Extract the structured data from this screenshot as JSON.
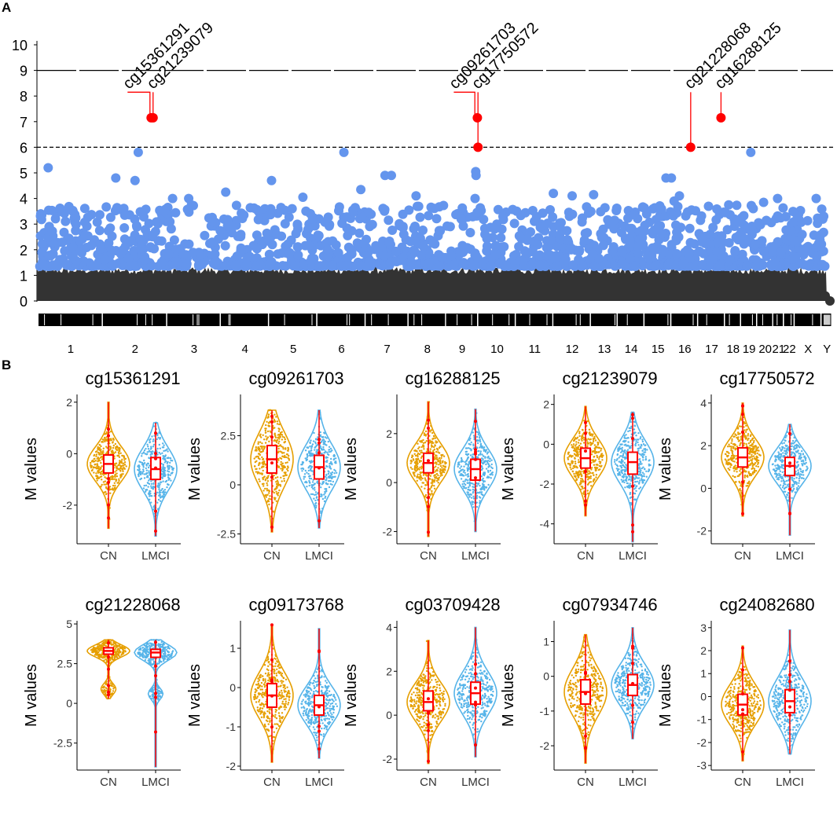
{
  "panels": {
    "a_label": "A",
    "b_label": "B"
  },
  "colors": {
    "low_points": "#333333",
    "mid_points": "#6495ED",
    "highlight": "#ff0000",
    "cn": "#E69F00",
    "lmci": "#56B4E9",
    "box_edge": "#ff0000"
  },
  "chart_data": [
    {
      "type": "scatter",
      "name": "manhattan",
      "ylim": [
        0,
        10
      ],
      "yticks": [
        0,
        1,
        2,
        3,
        4,
        5,
        6,
        7,
        8,
        9,
        10
      ],
      "thresholds": [
        {
          "value": 9,
          "style": "solid"
        },
        {
          "value": 6,
          "style": "dashed"
        }
      ],
      "chromosomes": [
        "1",
        "2",
        "3",
        "4",
        "5",
        "6",
        "7",
        "8",
        "9",
        "10",
        "11",
        "12",
        "13",
        "14",
        "15",
        "16",
        "17",
        "18",
        "19",
        "20",
        "21",
        "22",
        "X",
        "Y"
      ],
      "chromosome_weights": [
        12,
        12,
        10,
        9,
        9,
        9,
        8,
        7,
        6,
        7,
        7,
        7,
        5,
        5,
        5,
        5,
        5,
        3,
        3,
        3,
        2,
        2,
        5,
        2
      ],
      "highlighted": [
        {
          "label": "cg15361291",
          "chr": "2",
          "pos": 0.75,
          "y": 7.15,
          "leader_to": "cg21239079"
        },
        {
          "label": "cg21239079",
          "chr": "2",
          "pos": 0.78,
          "y": 7.15
        },
        {
          "label": "cg09261703",
          "chr": "9",
          "pos": 0.97,
          "y": 7.15,
          "leader_to": "cg17750572"
        },
        {
          "label": "cg17750572",
          "chr": "9",
          "pos": 0.99,
          "y": 6.0
        },
        {
          "label": "cg21228068",
          "chr": "16",
          "pos": 0.72,
          "y": 6.0
        },
        {
          "label": "cg16288125",
          "chr": "17",
          "pos": 0.85,
          "y": 7.15
        }
      ],
      "notable_points": [
        {
          "chr": "1",
          "pos": 0.15,
          "y": 5.2
        },
        {
          "chr": "2",
          "pos": 0.55,
          "y": 5.8
        },
        {
          "chr": "2",
          "pos": 0.2,
          "y": 4.8
        },
        {
          "chr": "2",
          "pos": 0.5,
          "y": 4.7
        },
        {
          "chr": "3",
          "pos": 0.1,
          "y": 4.0
        },
        {
          "chr": "3",
          "pos": 0.4,
          "y": 4.0
        },
        {
          "chr": "4",
          "pos": 0.1,
          "y": 4.25
        },
        {
          "chr": "5",
          "pos": 0.05,
          "y": 4.7
        },
        {
          "chr": "5",
          "pos": 0.7,
          "y": 4.05
        },
        {
          "chr": "6",
          "pos": 0.55,
          "y": 5.8
        },
        {
          "chr": "6",
          "pos": 0.9,
          "y": 4.35
        },
        {
          "chr": "7",
          "pos": 0.45,
          "y": 4.9
        },
        {
          "chr": "7",
          "pos": 0.6,
          "y": 4.9
        },
        {
          "chr": "8",
          "pos": 0.2,
          "y": 4.1
        },
        {
          "chr": "9",
          "pos": 0.92,
          "y": 5.05
        },
        {
          "chr": "9",
          "pos": 0.93,
          "y": 4.9
        },
        {
          "chr": "9",
          "pos": 0.9,
          "y": 4.0
        },
        {
          "chr": "12",
          "pos": 0.0,
          "y": 4.2
        },
        {
          "chr": "12",
          "pos": 0.5,
          "y": 4.1
        },
        {
          "chr": "13",
          "pos": 0.1,
          "y": 4.15
        },
        {
          "chr": "15",
          "pos": 0.8,
          "y": 4.8
        },
        {
          "chr": "16",
          "pos": 0.0,
          "y": 4.8
        },
        {
          "chr": "16",
          "pos": 0.3,
          "y": 4.1
        },
        {
          "chr": "16",
          "pos": 0.1,
          "y": 3.9
        },
        {
          "chr": "19",
          "pos": 0.6,
          "y": 5.8
        },
        {
          "chr": "20",
          "pos": 0.4,
          "y": 3.85
        },
        {
          "chr": "21",
          "pos": 0.4,
          "y": 4.0
        },
        {
          "chr": "X",
          "pos": 0.1,
          "y": 3.3
        },
        {
          "chr": "X",
          "pos": 0.8,
          "y": 4.0
        },
        {
          "chr": "Y",
          "pos": 0.2,
          "y": 3.3
        }
      ]
    },
    {
      "type": "violin",
      "name": "cg15361291",
      "title": "cg15361291",
      "ylabel": "M values",
      "categories": [
        "CN",
        "LMCI"
      ],
      "yticks": [
        -2,
        0,
        2
      ],
      "ylim": [
        -3.5,
        2.3
      ],
      "groups": [
        {
          "median": -0.4,
          "q1": -0.75,
          "q3": -0.05,
          "min": -2.9,
          "max": 2.0
        },
        {
          "median": -0.6,
          "q1": -1.0,
          "q3": -0.15,
          "min": -3.2,
          "max": 1.2
        }
      ]
    },
    {
      "type": "violin",
      "name": "cg09261703",
      "title": "cg09261703",
      "ylabel": "M values",
      "categories": [
        "CN",
        "LMCI"
      ],
      "yticks": [
        -2.5,
        0.0,
        2.5
      ],
      "ylim": [
        -3.0,
        4.6
      ],
      "groups": [
        {
          "median": 1.3,
          "q1": 0.6,
          "q3": 2.0,
          "min": -2.4,
          "max": 3.8
        },
        {
          "median": 0.9,
          "q1": 0.3,
          "q3": 1.5,
          "min": -2.2,
          "max": 3.8
        }
      ]
    },
    {
      "type": "violin",
      "name": "cg16288125",
      "title": "cg16288125",
      "ylabel": "M values",
      "categories": [
        "CN",
        "LMCI"
      ],
      "yticks": [
        -2,
        0,
        2
      ],
      "ylim": [
        -2.5,
        3.6
      ],
      "groups": [
        {
          "median": 0.8,
          "q1": 0.4,
          "q3": 1.2,
          "min": -2.2,
          "max": 3.3
        },
        {
          "median": 0.55,
          "q1": 0.1,
          "q3": 0.95,
          "min": -2.0,
          "max": 3.0
        }
      ]
    },
    {
      "type": "violin",
      "name": "cg21239079",
      "title": "cg21239079",
      "ylabel": "M values",
      "categories": [
        "CN",
        "LMCI"
      ],
      "yticks": [
        -4,
        -2,
        0,
        2
      ],
      "ylim": [
        -5.0,
        2.5
      ],
      "groups": [
        {
          "median": -0.7,
          "q1": -1.2,
          "q3": -0.2,
          "min": -3.6,
          "max": 1.9
        },
        {
          "median": -0.9,
          "q1": -1.5,
          "q3": -0.4,
          "min": -4.9,
          "max": 1.6
        }
      ]
    },
    {
      "type": "violin",
      "name": "cg17750572",
      "title": "cg17750572",
      "ylabel": "M values",
      "categories": [
        "CN",
        "LMCI"
      ],
      "yticks": [
        -2,
        0,
        2,
        4
      ],
      "ylim": [
        -2.6,
        4.4
      ],
      "groups": [
        {
          "median": 1.45,
          "q1": 1.0,
          "q3": 1.9,
          "min": -1.3,
          "max": 4.0
        },
        {
          "median": 1.05,
          "q1": 0.6,
          "q3": 1.45,
          "min": -2.2,
          "max": 3.0
        }
      ]
    },
    {
      "type": "violin",
      "name": "cg21228068",
      "title": "cg21228068",
      "ylabel": "M values",
      "categories": [
        "CN",
        "LMCI"
      ],
      "yticks": [
        -2.5,
        0.0,
        2.5,
        5.0
      ],
      "ylim": [
        -4.2,
        5.2
      ],
      "groups": [
        {
          "median": 3.3,
          "q1": 3.1,
          "q3": 3.5,
          "min": 0.3,
          "max": 4.0,
          "bimodal_low": 0.9
        },
        {
          "median": 3.2,
          "q1": 2.9,
          "q3": 3.4,
          "min": -4.0,
          "max": 4.0,
          "bimodal_low": 0.6
        }
      ]
    },
    {
      "type": "violin",
      "name": "cg09173768",
      "title": "cg09173768",
      "ylabel": "M values",
      "categories": [
        "CN",
        "LMCI"
      ],
      "yticks": [
        -2,
        -1,
        0,
        1
      ],
      "ylim": [
        -2.1,
        1.7
      ],
      "groups": [
        {
          "median": -0.2,
          "q1": -0.5,
          "q3": 0.1,
          "min": -1.9,
          "max": 1.6
        },
        {
          "median": -0.45,
          "q1": -0.7,
          "q3": -0.2,
          "min": -1.8,
          "max": 1.5
        }
      ]
    },
    {
      "type": "violin",
      "name": "cg03709428",
      "title": "cg03709428",
      "ylabel": "M values",
      "categories": [
        "CN",
        "LMCI"
      ],
      "yticks": [
        -2,
        0,
        2,
        4
      ],
      "ylim": [
        -2.5,
        4.3
      ],
      "groups": [
        {
          "median": 0.6,
          "q1": 0.2,
          "q3": 1.1,
          "min": -2.2,
          "max": 3.4
        },
        {
          "median": 1.0,
          "q1": 0.5,
          "q3": 1.5,
          "min": -1.9,
          "max": 4.0
        }
      ]
    },
    {
      "type": "violin",
      "name": "cg07934746",
      "title": "cg07934746",
      "ylabel": "M values",
      "categories": [
        "CN",
        "LMCI"
      ],
      "yticks": [
        -2,
        -1,
        0,
        1
      ],
      "ylim": [
        -2.7,
        1.6
      ],
      "groups": [
        {
          "median": -0.45,
          "q1": -0.8,
          "q3": -0.1,
          "min": -2.5,
          "max": 1.2
        },
        {
          "median": -0.25,
          "q1": -0.55,
          "q3": 0.05,
          "min": -1.8,
          "max": 1.4
        }
      ]
    },
    {
      "type": "violin",
      "name": "cg24082680",
      "title": "cg24082680",
      "ylabel": "M values",
      "categories": [
        "CN",
        "LMCI"
      ],
      "yticks": [
        -3,
        -2,
        -1,
        0,
        1,
        2,
        3
      ],
      "ylim": [
        -3.2,
        3.3
      ],
      "groups": [
        {
          "median": -0.35,
          "q1": -0.8,
          "q3": 0.1,
          "min": -2.8,
          "max": 2.2
        },
        {
          "median": -0.2,
          "q1": -0.7,
          "q3": 0.3,
          "min": -2.5,
          "max": 2.9
        }
      ]
    }
  ]
}
